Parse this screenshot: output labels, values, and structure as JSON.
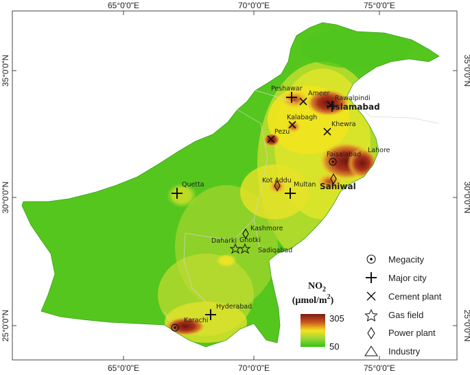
{
  "axes": {
    "top": [
      "65°0'0\"E",
      "70°0'0\"E",
      "75°0'0\"E"
    ],
    "bottom": [
      "65°0'0\"E",
      "70°0'0\"E",
      "75°0'0\"E"
    ],
    "left": [
      "35°0'0\"N",
      "30°0'0\"N",
      "25°0'0\"N"
    ],
    "right": [
      "35°0'0\"N",
      "30°0'0\"N",
      "25°0'0\"N"
    ]
  },
  "colorbar": {
    "title_line1": "NO",
    "title_sub": "2",
    "title_line2": "(µmol/m",
    "title_sup": "2",
    "title_close": ")",
    "max": "305",
    "min": "50",
    "colors": [
      "#7a1a12",
      "#c9561f",
      "#f7e21f",
      "#9bd63a",
      "#33c317"
    ]
  },
  "legend": [
    {
      "icon": "megacity-icon",
      "label": "Megacity"
    },
    {
      "icon": "major-city-icon",
      "label": "Major city"
    },
    {
      "icon": "cement-plant-icon",
      "label": "Cement plant"
    },
    {
      "icon": "gas-field-icon",
      "label": "Gas field"
    },
    {
      "icon": "power-plant-icon",
      "label": "Power plant"
    },
    {
      "icon": "industry-icon",
      "label": "Industry"
    }
  ],
  "places": {
    "peshawar": "Peshawar",
    "ameer": "Ameer",
    "rawalpindi": "Rawalpindi",
    "islamabad": "Islamabad",
    "kalabagh": "Kalabagh",
    "khewra": "Khewra",
    "pezu": "Pezu",
    "faisalabad": "Faisalabad",
    "lahore": "Lahore",
    "quetta": "Quetta",
    "kot_addu": "Kot Addu",
    "multan": "Multan",
    "sahiwal": "Sahiwal",
    "kashmore": "Kashmore",
    "daharki": "Daharki",
    "ghotki": "Ghotki",
    "sadiqabad": "Sadiqabad",
    "hyderabad": "Hyderabad",
    "karachi": "Karachi"
  }
}
